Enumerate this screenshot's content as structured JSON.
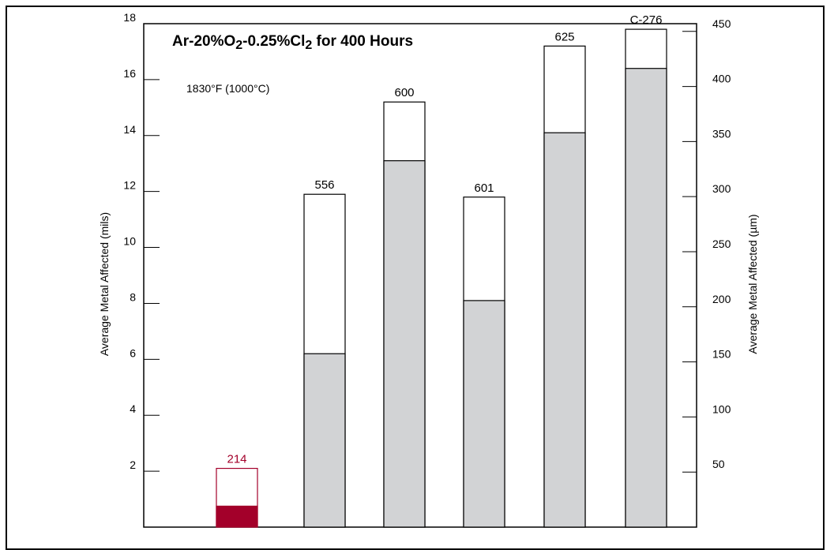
{
  "chart_data": {
    "type": "bar",
    "title_parts": [
      "Ar-20%O",
      "2",
      "-0.25%Cl",
      "2",
      " for 400 Hours"
    ],
    "annotation": "1830°F (1000°C)",
    "ylabel": "Average Metal Affected (mils)",
    "ylabel_right": "Average Metal Affected (µm)",
    "ylim": [
      0,
      18.0
    ],
    "ylim_right": [
      0,
      457
    ],
    "yticks_left": [
      "2",
      "4",
      "6",
      "8",
      "10",
      "12",
      "14",
      "16",
      "18"
    ],
    "yticks_right": [
      "50",
      "100",
      "150",
      "200",
      "250",
      "300",
      "350",
      "400",
      "450"
    ],
    "categories": [
      "214",
      "556",
      "600",
      "601",
      "625",
      "C-276"
    ],
    "series": [
      {
        "values": [
          0.75,
          6.2,
          13.1,
          8.1,
          14.1,
          16.4
        ]
      },
      {
        "values": [
          2.1,
          11.9,
          15.2,
          11.8,
          17.2,
          17.8
        ]
      }
    ],
    "colors": {
      "highlight_fill": "#a3002a",
      "highlight_label": "#a3002a",
      "inner_fill": "#d2d3d5",
      "outer_fill": "#ffffff",
      "axis": "#000000"
    },
    "grid": false,
    "legend": "none"
  }
}
